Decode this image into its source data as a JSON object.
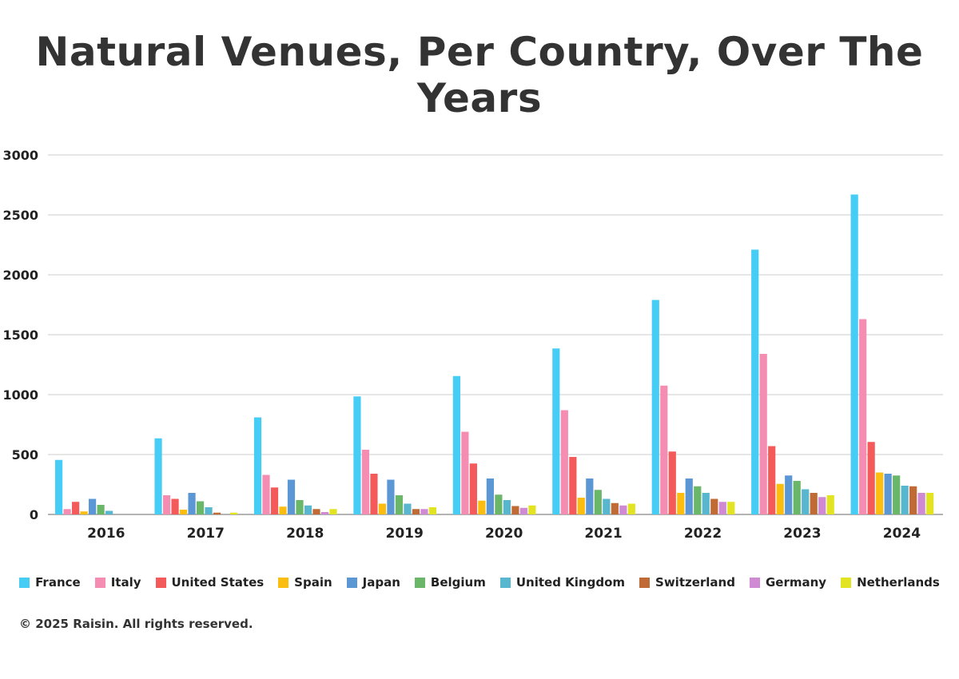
{
  "chart_data": {
    "type": "bar",
    "title": "Natural Venues, Per Country, Over The Years",
    "xlabel": "",
    "ylabel": "",
    "ylim": [
      0,
      3000
    ],
    "yticks": [
      0,
      500,
      1000,
      1500,
      2000,
      2500,
      3000
    ],
    "grid": true,
    "legend_position": "bottom",
    "categories": [
      "2016",
      "2017",
      "2018",
      "2019",
      "2020",
      "2021",
      "2022",
      "2023",
      "2024"
    ],
    "series": [
      {
        "name": "France",
        "color": "#45cdf5",
        "values": [
          455,
          635,
          810,
          985,
          1155,
          1385,
          1790,
          2210,
          2670
        ]
      },
      {
        "name": "Italy",
        "color": "#f58db3",
        "values": [
          45,
          160,
          330,
          540,
          690,
          870,
          1075,
          1340,
          1630
        ]
      },
      {
        "name": "United States",
        "color": "#f55a5a",
        "values": [
          105,
          130,
          225,
          340,
          425,
          480,
          525,
          570,
          605
        ]
      },
      {
        "name": "Spain",
        "color": "#fbbd10",
        "values": [
          25,
          40,
          65,
          90,
          115,
          140,
          180,
          255,
          350
        ]
      },
      {
        "name": "Japan",
        "color": "#5b97d5",
        "values": [
          130,
          180,
          290,
          290,
          300,
          300,
          300,
          325,
          340
        ]
      },
      {
        "name": "Belgium",
        "color": "#6ab76a",
        "values": [
          80,
          110,
          120,
          160,
          165,
          205,
          235,
          280,
          325
        ]
      },
      {
        "name": "United Kingdom",
        "color": "#58b6ce",
        "values": [
          30,
          60,
          75,
          90,
          120,
          130,
          180,
          210,
          240
        ]
      },
      {
        "name": "Switzerland",
        "color": "#c06a35",
        "values": [
          0,
          15,
          45,
          45,
          70,
          95,
          130,
          180,
          235
        ]
      },
      {
        "name": "Germany",
        "color": "#cf8ad3",
        "values": [
          0,
          0,
          20,
          45,
          55,
          75,
          105,
          145,
          180
        ]
      },
      {
        "name": "Netherlands",
        "color": "#e3e421",
        "values": [
          0,
          15,
          45,
          60,
          75,
          90,
          105,
          160,
          180
        ]
      }
    ]
  },
  "footer": "© 2025 Raisin. All rights reserved."
}
